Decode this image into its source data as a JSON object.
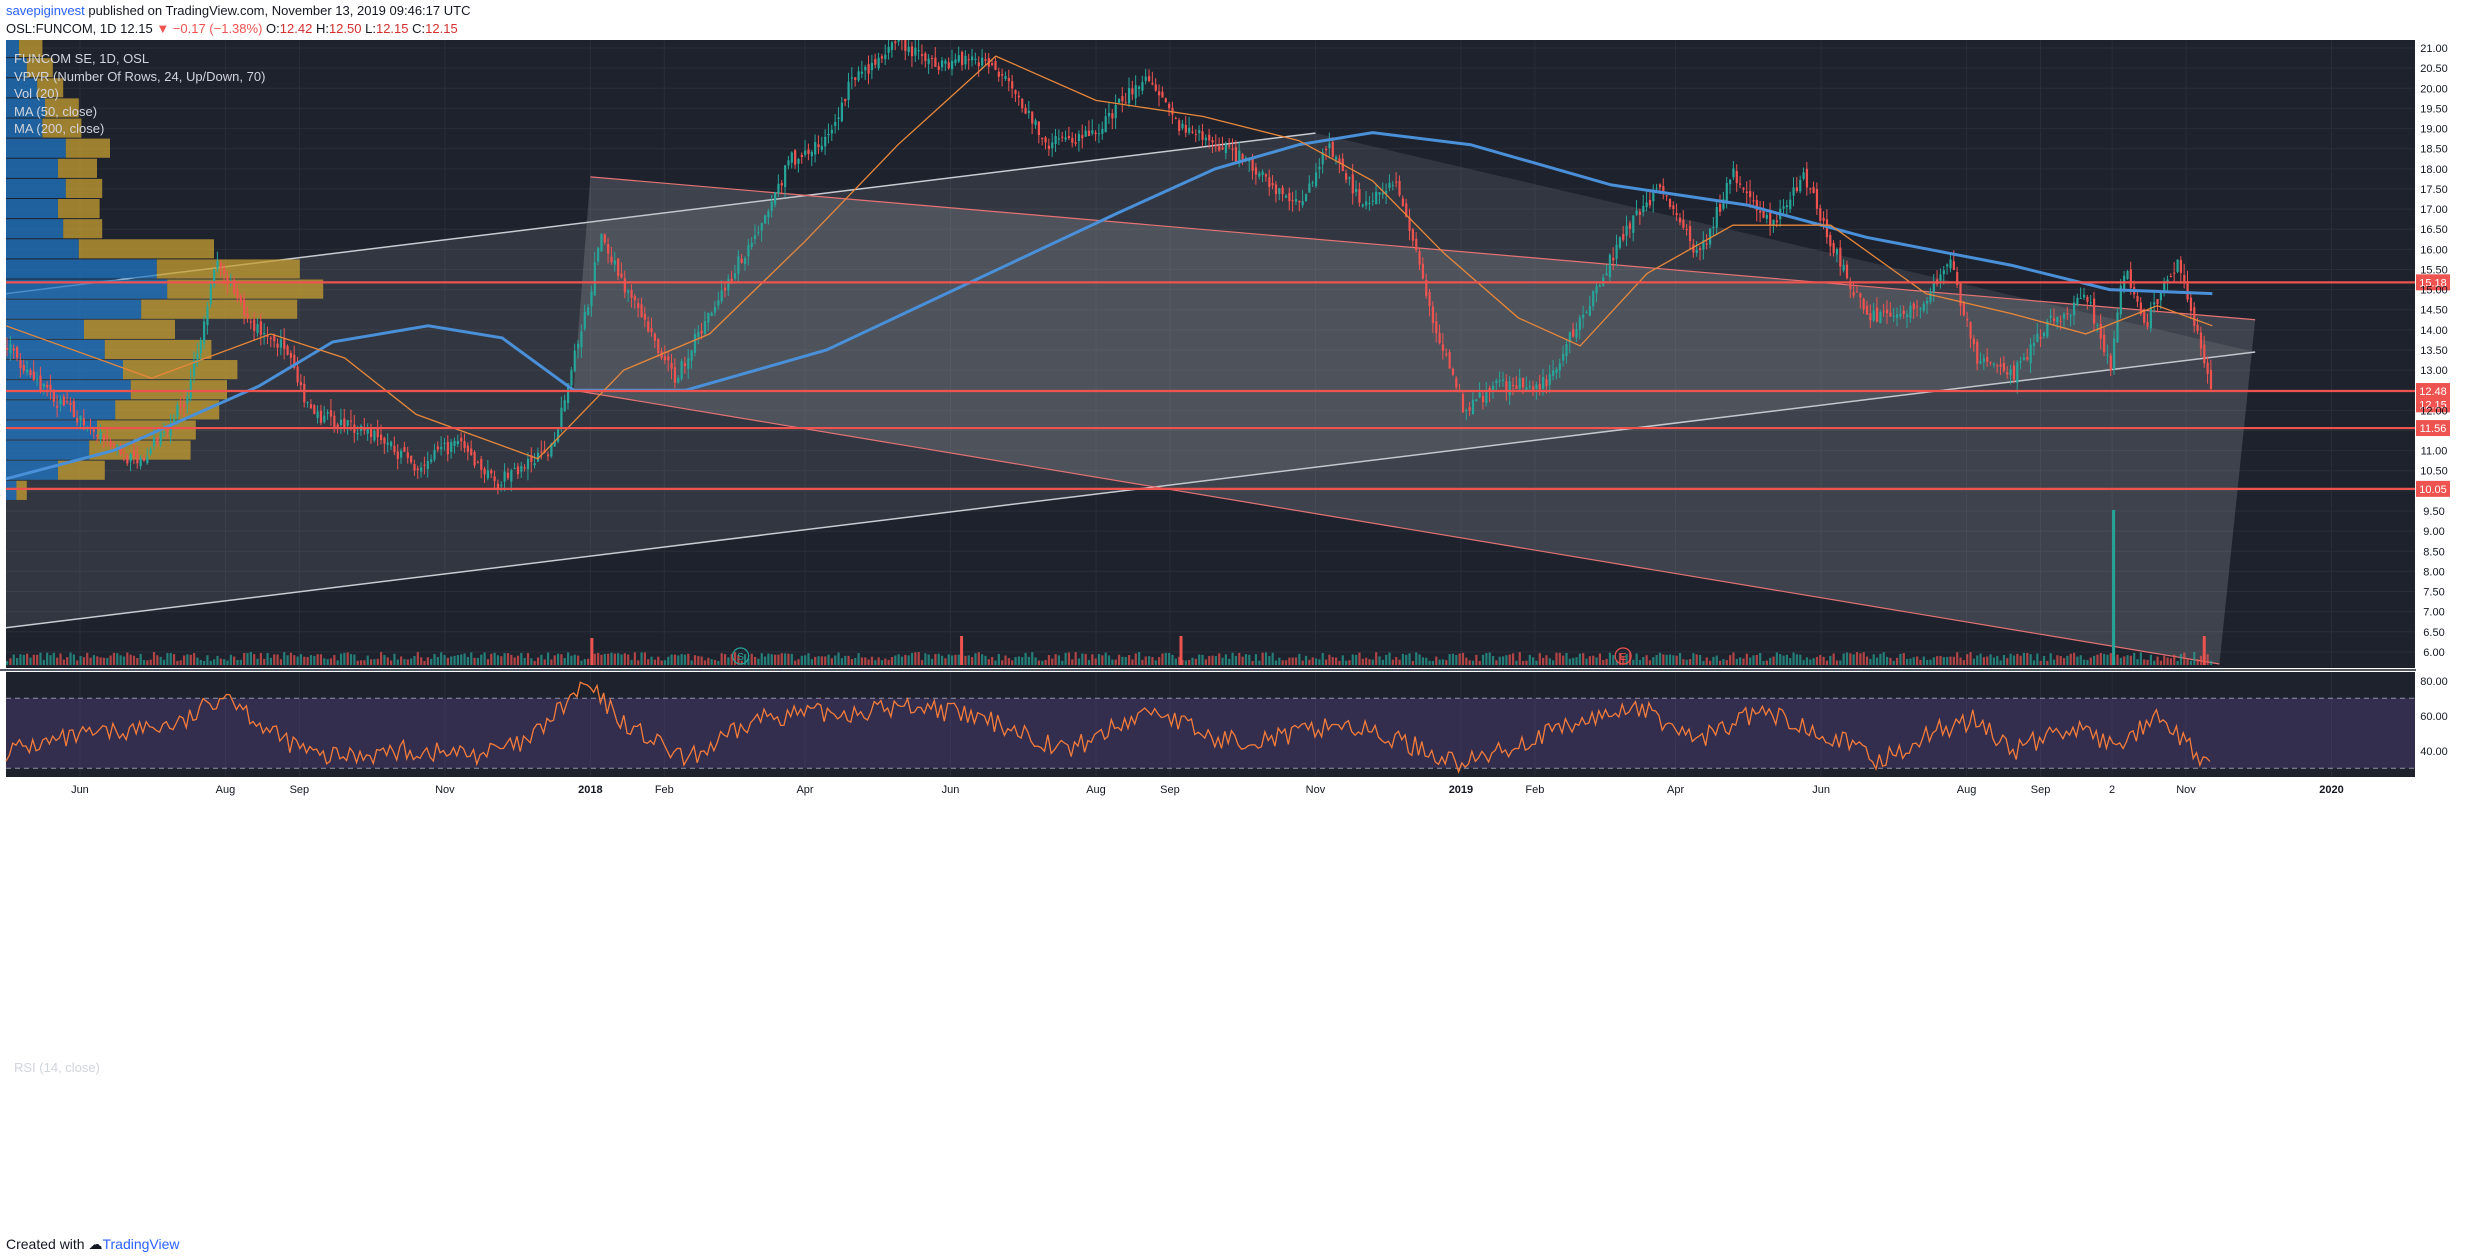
{
  "header": {
    "publisher": "savepiginvest",
    "published_text": "published on TradingView.com, November 13, 2019 09:46:17 UTC",
    "symbol": "OSL:FUNCOM, 1D",
    "last": "12.15",
    "change": "▼ −0.17 (−1.38%)",
    "o_label": "O:",
    "o": "12.42",
    "h_label": "H:",
    "h": "12.50",
    "l_label": "L:",
    "l": "12.15",
    "c_label": "C:",
    "c": "12.15"
  },
  "legend": {
    "title": "FUNCOM SE, 1D, OSL",
    "items": [
      "VPVR (Number Of Rows, 24, Up/Down, 70)",
      "Vol (20)",
      "MA (50, close)",
      "MA (200, close)"
    ]
  },
  "rsi_title": "RSI (14, close)",
  "footer": {
    "created": "Created with",
    "brand": "TradingView"
  },
  "colors": {
    "background": "#1e222d",
    "up": "#26a69a",
    "down": "#ef5350",
    "ma50": "#e8873a",
    "ma200": "#4a90d9",
    "rsi": "#f57c3a",
    "level": "#ef5350",
    "vp_up": "#1f77c4",
    "vp_down": "#c8a030"
  },
  "chart_data": [
    {
      "type": "line",
      "subtype": "candlestick",
      "scale": "linear",
      "y_range": [
        5.6,
        21.2
      ],
      "y_ticks": [
        "21.00",
        "20.50",
        "20.00",
        "19.50",
        "19.00",
        "18.50",
        "18.00",
        "17.50",
        "17.00",
        "16.50",
        "16.00",
        "15.50",
        "15.00",
        "14.50",
        "14.00",
        "13.50",
        "13.00",
        "12.50",
        "12.00",
        "11.50",
        "11.00",
        "10.50",
        "10.00",
        "9.50",
        "9.00",
        "8.50",
        "8.00",
        "7.50",
        "7.00",
        "6.50",
        "6.00"
      ],
      "x_ticks": [
        "Jun",
        "Aug",
        "Sep",
        "Nov",
        "2018",
        "Feb",
        "Apr",
        "Jun",
        "Aug",
        "Sep",
        "Nov",
        "2019",
        "Feb",
        "Apr",
        "Jun",
        "Aug",
        "Sep",
        "2",
        "Nov",
        "2020"
      ],
      "x_tick_dates": [
        "2017-06-01",
        "2017-08-01",
        "2017-09-01",
        "2017-11-01",
        "2018-01-01",
        "2018-02-01",
        "2018-04-01",
        "2018-06-01",
        "2018-08-01",
        "2018-09-01",
        "2018-11-01",
        "2019-01-01",
        "2019-02-01",
        "2019-04-01",
        "2019-06-01",
        "2019-08-01",
        "2019-09-01",
        "2019-10-01",
        "2019-11-01",
        "2020-01-01"
      ],
      "close_path": [
        [
          "2017-05-01",
          13.6
        ],
        [
          "2017-05-20",
          12.3
        ],
        [
          "2017-06-10",
          11.4
        ],
        [
          "2017-06-25",
          10.6
        ],
        [
          "2017-07-15",
          12.3
        ],
        [
          "2017-07-28",
          15.7
        ],
        [
          "2017-08-10",
          14.2
        ],
        [
          "2017-08-25",
          13.6
        ],
        [
          "2017-09-05",
          11.9
        ],
        [
          "2017-09-30",
          11.5
        ],
        [
          "2017-10-20",
          10.6
        ],
        [
          "2017-11-05",
          11.2
        ],
        [
          "2017-11-22",
          10.2
        ],
        [
          "2017-12-15",
          11.0
        ],
        [
          "2017-12-30",
          14.5
        ],
        [
          "2018-01-05",
          16.3
        ],
        [
          "2018-01-20",
          14.5
        ],
        [
          "2018-02-05",
          12.8
        ],
        [
          "2018-02-25",
          15.0
        ],
        [
          "2018-03-15",
          16.8
        ],
        [
          "2018-03-25",
          18.2
        ],
        [
          "2018-04-10",
          18.7
        ],
        [
          "2018-04-20",
          20.2
        ],
        [
          "2018-05-10",
          21.1
        ],
        [
          "2018-05-25",
          20.6
        ],
        [
          "2018-06-10",
          20.8
        ],
        [
          "2018-06-25",
          20.3
        ],
        [
          "2018-07-10",
          18.6
        ],
        [
          "2018-08-01",
          18.9
        ],
        [
          "2018-08-20",
          20.3
        ],
        [
          "2018-09-05",
          19.0
        ],
        [
          "2018-09-25",
          18.5
        ],
        [
          "2018-10-10",
          17.8
        ],
        [
          "2018-10-25",
          17.0
        ],
        [
          "2018-11-05",
          18.6
        ],
        [
          "2018-11-20",
          17.2
        ],
        [
          "2018-12-05",
          17.6
        ],
        [
          "2018-12-20",
          14.2
        ],
        [
          "2019-01-02",
          12.0
        ],
        [
          "2019-01-15",
          12.6
        ],
        [
          "2019-02-05",
          12.7
        ],
        [
          "2019-02-20",
          14.3
        ],
        [
          "2019-03-10",
          16.4
        ],
        [
          "2019-03-25",
          17.6
        ],
        [
          "2019-04-10",
          15.8
        ],
        [
          "2019-04-25",
          17.9
        ],
        [
          "2019-05-10",
          16.6
        ],
        [
          "2019-05-25",
          17.8
        ],
        [
          "2019-06-05",
          16.1
        ],
        [
          "2019-06-20",
          14.3
        ],
        [
          "2019-07-10",
          14.5
        ],
        [
          "2019-07-25",
          15.6
        ],
        [
          "2019-08-05",
          13.3
        ],
        [
          "2019-08-20",
          12.9
        ],
        [
          "2019-09-05",
          14.2
        ],
        [
          "2019-09-20",
          14.8
        ],
        [
          "2019-09-30",
          13.0
        ],
        [
          "2019-10-05",
          15.6
        ],
        [
          "2019-10-15",
          14.2
        ],
        [
          "2019-10-28",
          15.7
        ],
        [
          "2019-11-05",
          14.0
        ],
        [
          "2019-11-12",
          12.15
        ]
      ],
      "ma50_path": [
        [
          "2017-05-01",
          14.1
        ],
        [
          "2017-07-01",
          12.8
        ],
        [
          "2017-08-20",
          13.9
        ],
        [
          "2017-09-20",
          13.3
        ],
        [
          "2017-10-20",
          11.9
        ],
        [
          "2017-12-10",
          10.8
        ],
        [
          "2018-01-15",
          13.0
        ],
        [
          "2018-02-20",
          13.9
        ],
        [
          "2018-04-01",
          16.2
        ],
        [
          "2018-05-10",
          18.6
        ],
        [
          "2018-06-20",
          20.8
        ],
        [
          "2018-08-01",
          19.7
        ],
        [
          "2018-09-15",
          19.3
        ],
        [
          "2018-10-25",
          18.7
        ],
        [
          "2018-11-25",
          17.7
        ],
        [
          "2018-12-25",
          15.9
        ],
        [
          "2019-01-25",
          14.3
        ],
        [
          "2019-02-20",
          13.6
        ],
        [
          "2019-03-20",
          15.4
        ],
        [
          "2019-04-25",
          16.6
        ],
        [
          "2019-06-05",
          16.6
        ],
        [
          "2019-07-15",
          14.9
        ],
        [
          "2019-08-20",
          14.4
        ],
        [
          "2019-09-20",
          13.9
        ],
        [
          "2019-10-20",
          14.6
        ],
        [
          "2019-11-12",
          14.1
        ]
      ],
      "ma200_path": [
        [
          "2017-05-01",
          10.3
        ],
        [
          "2017-06-15",
          11.0
        ],
        [
          "2017-08-15",
          12.6
        ],
        [
          "2017-09-15",
          13.7
        ],
        [
          "2017-10-25",
          14.1
        ],
        [
          "2017-11-25",
          13.8
        ],
        [
          "2017-12-25",
          12.5
        ],
        [
          "2018-02-10",
          12.5
        ],
        [
          "2018-04-10",
          13.5
        ],
        [
          "2018-06-10",
          15.2
        ],
        [
          "2018-08-10",
          16.9
        ],
        [
          "2018-09-20",
          18.0
        ],
        [
          "2018-10-25",
          18.6
        ],
        [
          "2018-11-25",
          18.9
        ],
        [
          "2019-01-05",
          18.6
        ],
        [
          "2019-03-05",
          17.6
        ],
        [
          "2019-05-01",
          17.1
        ],
        [
          "2019-06-20",
          16.3
        ],
        [
          "2019-08-20",
          15.6
        ],
        [
          "2019-09-30",
          15.0
        ],
        [
          "2019-11-12",
          14.9
        ]
      ],
      "horizontal_levels": [
        {
          "price": 15.18,
          "label": "15.18"
        },
        {
          "price": 12.48,
          "label": "12.48"
        },
        {
          "price": 11.56,
          "label": "11.56"
        },
        {
          "price": 10.05,
          "label": "10.05"
        }
      ],
      "last_price_label": {
        "price": 12.15,
        "label": "12.15"
      },
      "channels": [
        {
          "name": "ascending",
          "base": [
            [
              "2017-05-01",
              6.6
            ],
            [
              "2019-11-30",
              13.45
            ]
          ],
          "top_offset": 8.3
        },
        {
          "name": "descending",
          "base": [
            [
              "2018-01-01",
              17.8
            ],
            [
              "2019-11-30",
              14.25
            ]
          ],
          "bottom": [
            [
              "2017-12-25",
              12.5
            ],
            [
              "2019-11-15",
              5.7
            ]
          ]
        }
      ],
      "volume_profile": [
        {
          "price": 10.0,
          "up": 0.04,
          "down": 0.04
        },
        {
          "price": 10.5,
          "up": 0.2,
          "down": 0.18
        },
        {
          "price": 11.0,
          "up": 0.32,
          "down": 0.39
        },
        {
          "price": 11.5,
          "up": 0.35,
          "down": 0.38
        },
        {
          "price": 12.0,
          "up": 0.42,
          "down": 0.4
        },
        {
          "price": 12.5,
          "up": 0.48,
          "down": 0.37
        },
        {
          "price": 13.0,
          "up": 0.45,
          "down": 0.44
        },
        {
          "price": 13.5,
          "up": 0.38,
          "down": 0.41
        },
        {
          "price": 14.0,
          "up": 0.3,
          "down": 0.35
        },
        {
          "price": 14.5,
          "up": 0.52,
          "down": 0.6
        },
        {
          "price": 15.0,
          "up": 0.62,
          "down": 0.6
        },
        {
          "price": 15.5,
          "up": 0.58,
          "down": 0.55
        },
        {
          "price": 16.0,
          "up": 0.28,
          "down": 0.52
        },
        {
          "price": 16.5,
          "up": 0.22,
          "down": 0.15
        },
        {
          "price": 17.0,
          "up": 0.2,
          "down": 0.16
        },
        {
          "price": 17.5,
          "up": 0.23,
          "down": 0.14
        },
        {
          "price": 18.0,
          "up": 0.2,
          "down": 0.15
        },
        {
          "price": 18.5,
          "up": 0.23,
          "down": 0.17
        },
        {
          "price": 19.0,
          "up": 0.14,
          "down": 0.15
        },
        {
          "price": 19.5,
          "up": 0.15,
          "down": 0.13
        },
        {
          "price": 20.0,
          "up": 0.12,
          "down": 0.1
        },
        {
          "price": 20.5,
          "up": 0.08,
          "down": 0.1
        },
        {
          "price": 21.0,
          "up": 0.05,
          "down": 0.09
        }
      ],
      "volume_spikes": [
        {
          "date": "2018-01-01",
          "v": 0.45
        },
        {
          "date": "2018-06-05",
          "v": 0.55
        },
        {
          "date": "2018-09-05",
          "v": 0.55
        },
        {
          "date": "2019-10-01",
          "v": 5.5
        },
        {
          "date": "2019-11-08",
          "v": 0.55
        }
      ],
      "event_markers": [
        {
          "date": "2018-03-05",
          "label": "S"
        },
        {
          "date": "2019-03-10",
          "label": "E"
        }
      ]
    },
    {
      "type": "line",
      "title": "RSI (14, close)",
      "y_range": [
        25,
        85
      ],
      "y_ticks": [
        "80.00",
        "60.00",
        "40.00"
      ],
      "bands": [
        70,
        30
      ],
      "path": [
        [
          "2017-05-01",
          40
        ],
        [
          "2017-06-01",
          48
        ],
        [
          "2017-07-15",
          56
        ],
        [
          "2017-08-01",
          74
        ],
        [
          "2017-08-20",
          50
        ],
        [
          "2017-09-10",
          36
        ],
        [
          "2017-10-15",
          40
        ],
        [
          "2017-11-15",
          38
        ],
        [
          "2017-12-05",
          44
        ],
        [
          "2017-12-30",
          78
        ],
        [
          "2018-01-15",
          56
        ],
        [
          "2018-02-10",
          34
        ],
        [
          "2018-03-15",
          60
        ],
        [
          "2018-04-20",
          62
        ],
        [
          "2018-05-20",
          66
        ],
        [
          "2018-06-25",
          54
        ],
        [
          "2018-07-20",
          40
        ],
        [
          "2018-08-25",
          64
        ],
        [
          "2018-09-20",
          46
        ],
        [
          "2018-10-20",
          48
        ],
        [
          "2018-11-10",
          56
        ],
        [
          "2018-12-10",
          44
        ],
        [
          "2019-01-02",
          32
        ],
        [
          "2019-01-25",
          44
        ],
        [
          "2019-03-15",
          66
        ],
        [
          "2019-04-10",
          46
        ],
        [
          "2019-05-05",
          62
        ],
        [
          "2019-06-01",
          52
        ],
        [
          "2019-06-25",
          34
        ],
        [
          "2019-07-20",
          52
        ],
        [
          "2019-08-05",
          58
        ],
        [
          "2019-08-20",
          40
        ],
        [
          "2019-09-15",
          54
        ],
        [
          "2019-10-01",
          42
        ],
        [
          "2019-10-20",
          58
        ],
        [
          "2019-11-12",
          30
        ]
      ]
    }
  ]
}
